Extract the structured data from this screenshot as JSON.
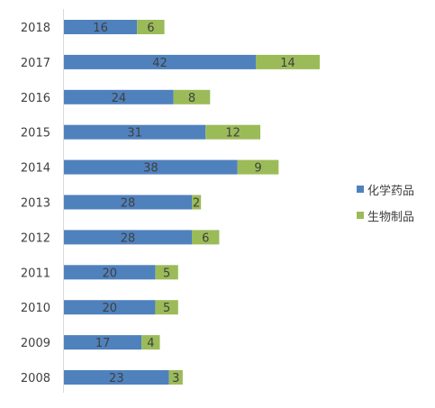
{
  "colors": {
    "chemical": "#4f81bd",
    "biological": "#9bbb59",
    "axis": "#d9d9d9",
    "text": "#404040"
  },
  "chart_data": {
    "type": "bar",
    "orientation": "horizontal",
    "stacked": true,
    "categories": [
      "2018",
      "2017",
      "2016",
      "2015",
      "2014",
      "2013",
      "2012",
      "2011",
      "2010",
      "2009",
      "2008"
    ],
    "series": [
      {
        "name": "化学药品",
        "values": [
          16,
          42,
          24,
          31,
          38,
          28,
          28,
          20,
          20,
          17,
          23
        ]
      },
      {
        "name": "生物制品",
        "values": [
          6,
          14,
          8,
          12,
          9,
          2,
          6,
          5,
          5,
          4,
          3
        ]
      }
    ],
    "xlim": [
      0,
      56
    ],
    "data_labels": true,
    "grid": false,
    "legend_position": "right"
  }
}
